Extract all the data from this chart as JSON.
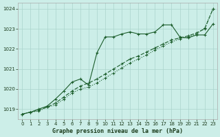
{
  "title": "Graphe pression niveau de la mer (hPa)",
  "bg_color": "#cceee8",
  "grid_color": "#aad4cc",
  "line_color": "#1a5c2a",
  "xlim": [
    -0.5,
    23.5
  ],
  "ylim": [
    1018.5,
    1024.3
  ],
  "yticks": [
    1019,
    1020,
    1021,
    1022,
    1023,
    1024
  ],
  "xticks": [
    0,
    1,
    2,
    3,
    4,
    5,
    6,
    7,
    8,
    9,
    10,
    11,
    12,
    13,
    14,
    15,
    16,
    17,
    18,
    19,
    20,
    21,
    22,
    23
  ],
  "series1_x": [
    0,
    1,
    2,
    3,
    4,
    5,
    6,
    7,
    8,
    9,
    10,
    11,
    12,
    13,
    14,
    15,
    16,
    17,
    18,
    19,
    20,
    21,
    22,
    23
  ],
  "series1_y": [
    1018.75,
    1018.85,
    1019.0,
    1019.15,
    1019.5,
    1019.9,
    1020.35,
    1020.5,
    1020.2,
    1021.8,
    1022.6,
    1022.6,
    1022.75,
    1022.85,
    1022.75,
    1022.75,
    1022.85,
    1023.2,
    1023.2,
    1022.6,
    1022.55,
    1022.7,
    1022.7,
    1023.25
  ],
  "series2_x": [
    0,
    1,
    2,
    3,
    4,
    5,
    6,
    7,
    8,
    9,
    10,
    11,
    12,
    13,
    14,
    15,
    16,
    17,
    18,
    19,
    20,
    21,
    22,
    23
  ],
  "series2_y": [
    1018.75,
    1018.85,
    1018.9,
    1019.1,
    1019.2,
    1019.5,
    1019.8,
    1020.0,
    1020.1,
    1020.3,
    1020.55,
    1020.8,
    1021.05,
    1021.3,
    1021.5,
    1021.7,
    1021.95,
    1022.15,
    1022.35,
    1022.5,
    1022.6,
    1022.75,
    1023.05,
    1024.0
  ],
  "series3_x": [
    0,
    1,
    2,
    3,
    4,
    5,
    6,
    7,
    8,
    9,
    10,
    11,
    12,
    13,
    14,
    15,
    16,
    17,
    18,
    19,
    20,
    21,
    22,
    23
  ],
  "series3_y": [
    1018.75,
    1018.85,
    1018.95,
    1019.1,
    1019.3,
    1019.6,
    1019.9,
    1020.15,
    1020.3,
    1020.5,
    1020.75,
    1021.0,
    1021.25,
    1021.5,
    1021.65,
    1021.85,
    1022.05,
    1022.25,
    1022.45,
    1022.55,
    1022.65,
    1022.8,
    1023.0,
    1024.0
  ]
}
